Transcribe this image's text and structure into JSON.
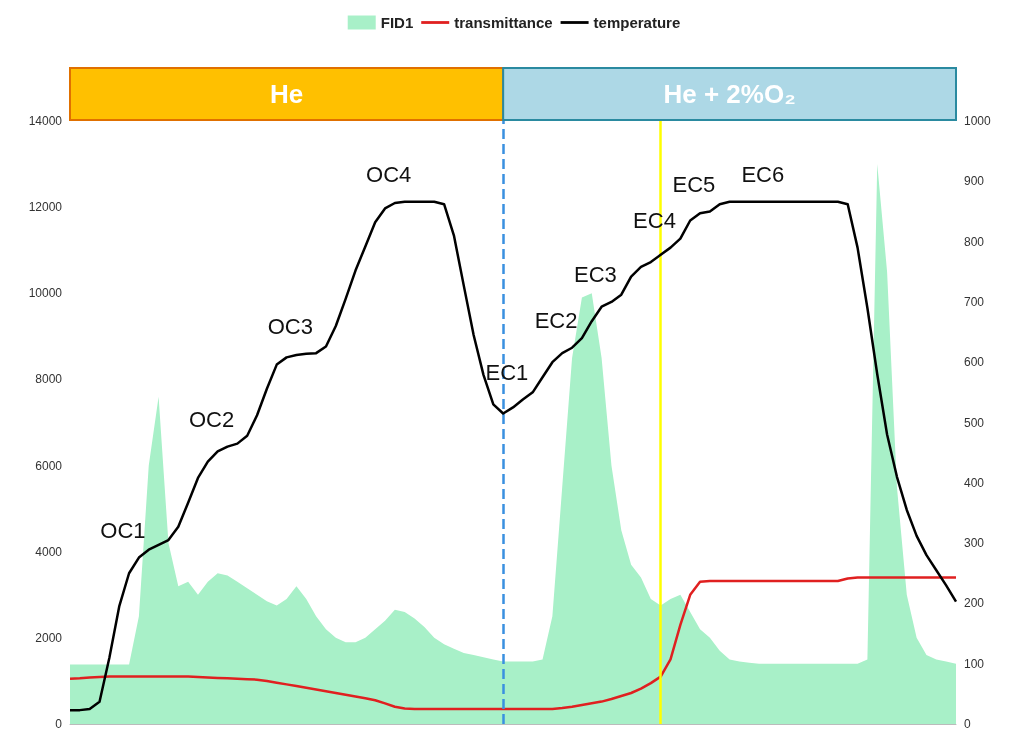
{
  "chart_data": {
    "type": "line",
    "categories": [
      null,
      null,
      null,
      null,
      null,
      null,
      null,
      null,
      null,
      null,
      null,
      null,
      null,
      null,
      null,
      null,
      null,
      null,
      null,
      null,
      null,
      null,
      null,
      null,
      null,
      null,
      null,
      null,
      null,
      null,
      null,
      null,
      null,
      null,
      null,
      null,
      null,
      null,
      null,
      null,
      null,
      null,
      null,
      null,
      null,
      null,
      null,
      null,
      null,
      null,
      null,
      null,
      null,
      null,
      null,
      null,
      null,
      null,
      null,
      null,
      null,
      null,
      null,
      null,
      null,
      null,
      null,
      null,
      null,
      null,
      null,
      null,
      null,
      null,
      null,
      null,
      null,
      null,
      null,
      null,
      null,
      null,
      null,
      null,
      null,
      null,
      null,
      null,
      null,
      null,
      null
    ],
    "series": [
      {
        "name": "FID1",
        "type": "area",
        "color": "#a8f0c8",
        "values": [
          1380,
          1380,
          1380,
          1380,
          1380,
          1380,
          1380,
          2500,
          6000,
          7600,
          4200,
          3200,
          3300,
          3000,
          3300,
          3500,
          3450,
          3300,
          3150,
          3000,
          2850,
          2750,
          2900,
          3200,
          2900,
          2500,
          2200,
          2000,
          1900,
          1900,
          2000,
          2200,
          2400,
          2650,
          2600,
          2450,
          2250,
          2000,
          1850,
          1750,
          1650,
          1600,
          1550,
          1500,
          1450,
          1450,
          1450,
          1450,
          1500,
          2500,
          5500,
          8500,
          9900,
          10000,
          8500,
          6000,
          4500,
          3700,
          3400,
          2900,
          2750,
          2900,
          3000,
          2600,
          2200,
          2000,
          1700,
          1500,
          1450,
          1420,
          1400,
          1400,
          1400,
          1400,
          1400,
          1400,
          1400,
          1400,
          1400,
          1400,
          1400,
          1500,
          13000,
          10500,
          5500,
          3000,
          2000,
          1600,
          1500,
          1450,
          1400
        ]
      },
      {
        "name": "transmittance",
        "color": "#e02020",
        "values": [
          1050,
          1060,
          1080,
          1090,
          1100,
          1100,
          1100,
          1100,
          1100,
          1100,
          1100,
          1100,
          1100,
          1090,
          1080,
          1070,
          1060,
          1050,
          1040,
          1030,
          1000,
          960,
          920,
          880,
          840,
          800,
          760,
          720,
          680,
          640,
          600,
          550,
          480,
          400,
          360,
          350,
          350,
          350,
          350,
          350,
          350,
          350,
          350,
          350,
          350,
          350,
          350,
          350,
          350,
          350,
          370,
          400,
          440,
          480,
          520,
          580,
          650,
          720,
          820,
          950,
          1100,
          1500,
          2300,
          3000,
          3300,
          3320,
          3320,
          3320,
          3320,
          3320,
          3320,
          3320,
          3320,
          3320,
          3320,
          3320,
          3320,
          3320,
          3320,
          3380,
          3400,
          3400,
          3400,
          3400,
          3400,
          3400,
          3400,
          3400,
          3400,
          3400,
          3400
        ]
      },
      {
        "name": "temperature",
        "axis": "y2",
        "color": "#000000",
        "values": [
          23,
          23,
          25,
          37,
          110,
          195,
          250,
          276,
          289,
          297,
          305,
          327,
          367,
          408,
          435,
          452,
          460,
          465,
          478,
          512,
          556,
          596,
          608,
          612,
          614,
          615,
          626,
          660,
          705,
          752,
          792,
          832,
          855,
          864,
          866,
          866,
          866,
          866,
          862,
          810,
          727,
          645,
          579,
          530,
          515,
          525,
          538,
          550,
          575,
          600,
          615,
          624,
          640,
          668,
          692,
          700,
          712,
          742,
          758,
          766,
          778,
          790,
          805,
          835,
          847,
          850,
          862,
          866,
          866,
          866,
          866,
          866,
          866,
          866,
          866,
          866,
          866,
          866,
          866,
          862,
          790,
          690,
          580,
          480,
          410,
          355,
          312,
          280,
          255,
          230,
          203
        ],
        "value_labels": [
          null,
          null,
          null,
          null,
          null,
          null,
          null,
          "OC1",
          null,
          null,
          null,
          null,
          null,
          null,
          null,
          null,
          "OC2",
          null,
          null,
          null,
          null,
          null,
          null,
          null,
          "OC3",
          null,
          null,
          null,
          null,
          null,
          null,
          null,
          null,
          null,
          "OC4",
          null,
          null,
          null,
          null,
          null,
          null,
          null,
          null,
          null,
          null,
          null,
          "EC1",
          null,
          null,
          null,
          null,
          "EC2",
          null,
          null,
          null,
          "EC3",
          null,
          null,
          null,
          null,
          null,
          "EC4",
          null,
          null,
          null,
          "EC5",
          null,
          null,
          null,
          null,
          null,
          null,
          "EC6",
          null,
          null,
          null,
          null,
          null,
          null,
          null,
          null,
          null,
          null,
          null,
          null,
          null,
          null,
          null,
          null,
          null,
          null
        ]
      }
    ],
    "ylim": [
      0,
      14000
    ],
    "yticks": [
      0,
      2000,
      4000,
      6000,
      8000,
      10000,
      12000,
      14000
    ],
    "y2lim": [
      0,
      1000
    ],
    "y2ticks": [
      0,
      100,
      200,
      300,
      400,
      500,
      600,
      700,
      800,
      900,
      1000
    ],
    "annotations": [
      "He",
      "He + 2%O₂"
    ],
    "legend": "top",
    "grid": false
  }
}
